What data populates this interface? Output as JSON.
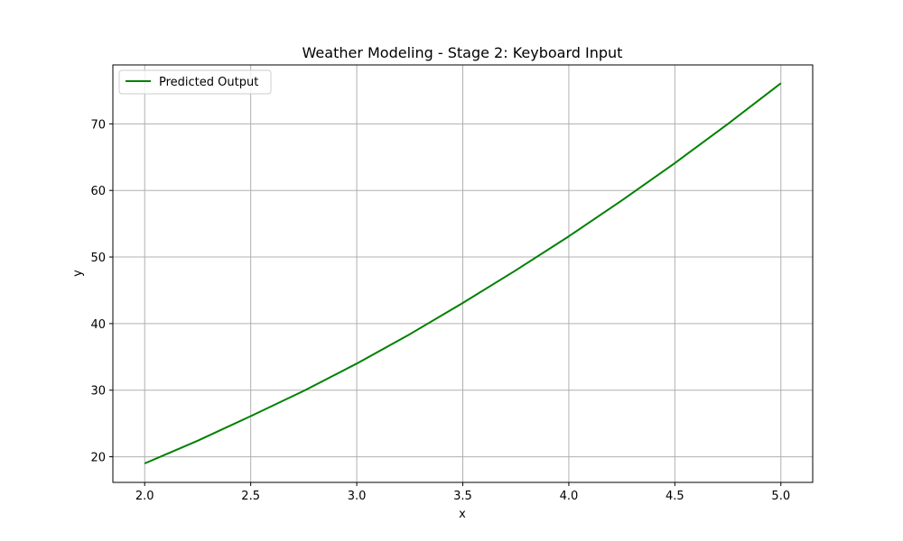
{
  "chart_data": {
    "type": "line",
    "title": "Weather Modeling - Stage 2: Keyboard Input",
    "xlabel": "x",
    "ylabel": "y",
    "xlim": [
      1.85,
      5.15
    ],
    "ylim": [
      16.15,
      78.85
    ],
    "xticks": [
      2.0,
      2.5,
      3.0,
      3.5,
      4.0,
      4.5,
      5.0
    ],
    "xtick_labels": [
      "2.0",
      "2.5",
      "3.0",
      "3.5",
      "4.0",
      "4.5",
      "5.0"
    ],
    "yticks": [
      20,
      30,
      40,
      50,
      60,
      70
    ],
    "ytick_labels": [
      "20",
      "30",
      "40",
      "50",
      "60",
      "70"
    ],
    "grid": true,
    "legend_position": "upper-left",
    "series": [
      {
        "name": "Predicted Output",
        "color": "#008000",
        "x": [
          2.0,
          2.25,
          2.5,
          2.75,
          3.0,
          3.25,
          3.5,
          3.75,
          4.0,
          4.25,
          4.5,
          4.75,
          5.0
        ],
        "y": [
          19.0,
          22.4,
          26.1,
          29.9,
          34.0,
          38.4,
          43.1,
          48.0,
          53.1,
          58.5,
          64.1,
          70.0,
          76.1
        ]
      }
    ]
  }
}
